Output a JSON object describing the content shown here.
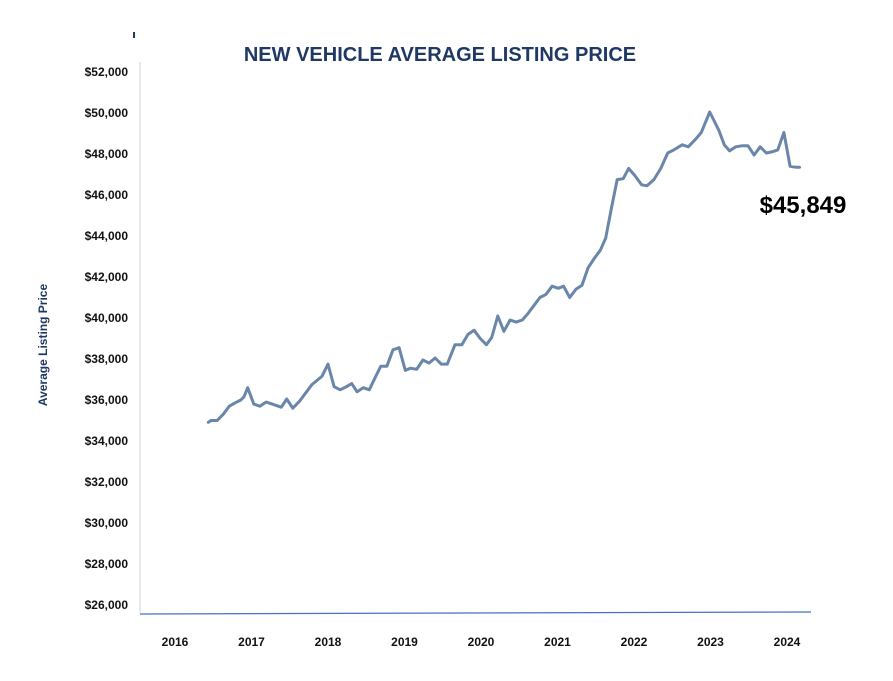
{
  "chart_data": {
    "type": "line",
    "title": "NEW VEHICLE AVERAGE LISTING PRICE",
    "xlabel": "",
    "ylabel": "Average Listing Price",
    "xlim": [
      2016,
      2024.3
    ],
    "ylim": [
      26000,
      52000
    ],
    "x_ticks": [
      "2016",
      "2017",
      "2018",
      "2019",
      "2020",
      "2021",
      "2022",
      "2023",
      "2024"
    ],
    "y_ticks": [
      "$26,000",
      "$28,000",
      "$30,000",
      "$32,000",
      "$34,000",
      "$36,000",
      "$38,000",
      "$40,000",
      "$42,000",
      "$44,000",
      "$46,000",
      "$48,000",
      "$50,000",
      "$52,000"
    ],
    "grid": false,
    "line_color": "#6a86a8",
    "annotation": "$45,849",
    "series": [
      {
        "x": [
          2016.43,
          2016.47,
          2016.55,
          2016.63,
          2016.71,
          2016.78,
          2016.86,
          2016.9,
          2016.95,
          2017.03,
          2017.11,
          2017.19,
          2017.27,
          2017.35,
          2017.39,
          2017.46,
          2017.54,
          2017.63,
          2017.71,
          2017.79,
          2017.87,
          2017.92,
          2018.0,
          2018.08,
          2018.16,
          2018.24,
          2018.31,
          2018.38,
          2018.46,
          2018.54,
          2018.61,
          2018.69,
          2018.77,
          2018.85,
          2018.93,
          2019.01,
          2019.08,
          2019.16,
          2019.24,
          2019.32,
          2019.4,
          2019.48,
          2019.56,
          2019.66,
          2019.75,
          2019.83,
          2019.91,
          2019.99,
          2020.07,
          2020.14,
          2020.22,
          2020.3,
          2020.38,
          2020.46,
          2020.54,
          2020.61,
          2020.69,
          2020.77,
          2020.85,
          2020.93,
          2021.01,
          2021.08,
          2021.16,
          2021.24,
          2021.32,
          2021.4,
          2021.48,
          2021.56,
          2021.63,
          2021.71,
          2021.78,
          2021.86,
          2021.93,
          2022.01,
          2022.1,
          2022.17,
          2022.26,
          2022.35,
          2022.44,
          2022.52,
          2022.63,
          2022.71,
          2022.8,
          2022.88,
          2022.99,
          2023.11,
          2023.18,
          2023.25,
          2023.33,
          2023.41,
          2023.49,
          2023.57,
          2023.65,
          2023.73,
          2023.8,
          2023.88,
          2023.96,
          2024.04,
          2024.12,
          2024.17
        ],
        "values": [
          34900,
          35000,
          35000,
          35300,
          35700,
          35850,
          36000,
          36150,
          36600,
          35800,
          35700,
          35900,
          35800,
          35700,
          35650,
          36050,
          35600,
          35950,
          36350,
          36750,
          37000,
          37150,
          37750,
          36650,
          36500,
          36650,
          36800,
          36400,
          36600,
          36500,
          37050,
          37650,
          37650,
          38450,
          38550,
          37450,
          37550,
          37500,
          37950,
          37800,
          38050,
          37750,
          37750,
          38700,
          38700,
          39200,
          39400,
          39000,
          38700,
          39050,
          40100,
          39350,
          39900,
          39800,
          39900,
          40200,
          40600,
          41000,
          41150,
          41550,
          41450,
          41550,
          41000,
          41400,
          41600,
          42450,
          42900,
          43300,
          43900,
          45450,
          46750,
          46800,
          47300,
          46950,
          46500,
          46450,
          46750,
          47300,
          48050,
          48200,
          48450,
          48350,
          48700,
          49050,
          50050,
          49150,
          48450,
          48150,
          48350,
          48400,
          48400,
          47950,
          48350,
          48050,
          48100,
          48200,
          49050,
          47400,
          47350,
          47350
        ]
      }
    ]
  }
}
